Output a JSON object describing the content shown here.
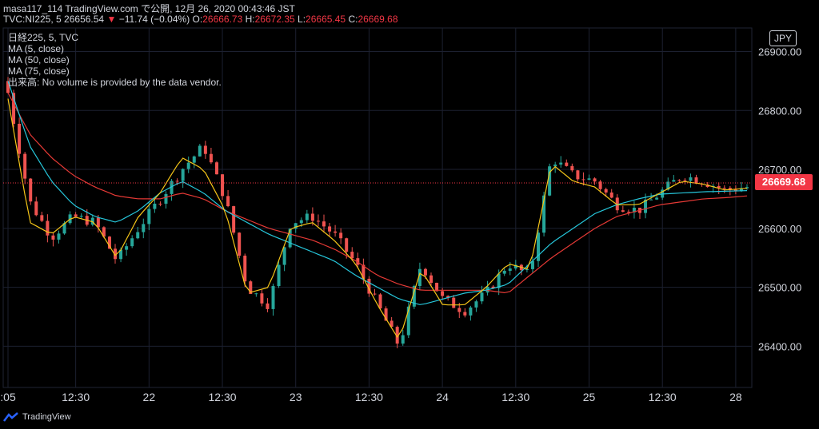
{
  "header": {
    "line1": "masa117_114 TradingView.com で公開, 12月 26, 2020 00:43:46 JST",
    "symbol": "TVC:NI225, 5",
    "last": "26656.54",
    "arrow": "▼",
    "change": "−11.74 (−0.04%)",
    "o_label": "O:",
    "o_value": "26666.73",
    "h_label": "H:",
    "h_value": "26672.35",
    "l_label": "L:",
    "l_value": "26665.45",
    "c_label": "C:",
    "c_value": "26669.68"
  },
  "legend": {
    "title": "日経225, 5, TVC",
    "ma5": "MA (5, close)",
    "ma50": "MA (50, close)",
    "ma75": "MA (75, close)",
    "volume": "出来高: No volume is provided by the data vendor."
  },
  "currency_button": "JPY",
  "current_price_badge": "26669.68",
  "footer_logo": "TradingView",
  "colors": {
    "up": "#26a69a",
    "down": "#ef5350",
    "ma5": "#f5c518",
    "ma50": "#26c6da",
    "ma75": "#e53935",
    "grid": "#1c2030",
    "background": "#000000"
  },
  "chart_data": {
    "type": "candlestick",
    "y_ticks": [
      "26900.00",
      "26800.00",
      "26700.00",
      "26600.00",
      "26500.00",
      "26400.00"
    ],
    "y_tick_values": [
      26900,
      26800,
      26700,
      26600,
      26500,
      26400
    ],
    "ylim": [
      26330,
      26940
    ],
    "x_ticks": [
      ":05",
      "12:30",
      "22",
      "12:30",
      "23",
      "12:30",
      "24",
      "12:30",
      "25",
      "12:30",
      "28"
    ],
    "x_tick_index": [
      0,
      12,
      25,
      38,
      51,
      64,
      77,
      90,
      103,
      116,
      129
    ],
    "session_close": [
      26830,
      26645,
      26585,
      26620,
      26610,
      26545,
      26600,
      26650,
      26700,
      26740,
      26650,
      26500,
      26470,
      26610,
      26620,
      26590,
      26540,
      26470,
      26400,
      26540,
      26480,
      26460,
      26490,
      26540,
      26520,
      26720,
      26690,
      26680,
      26640,
      26630,
      26660,
      26690,
      26680,
      26665,
      26670
    ],
    "ma5": [
      26820,
      26610,
      26590,
      26620,
      26610,
      26550,
      26620,
      26660,
      26720,
      26700,
      26630,
      26490,
      26500,
      26600,
      26610,
      26580,
      26540,
      26470,
      26410,
      26530,
      26470,
      26470,
      26500,
      26540,
      26530,
      26710,
      26680,
      26670,
      26640,
      26640,
      26660,
      26680,
      26675,
      26665,
      26668
    ],
    "ma50": [
      26850,
      26740,
      26680,
      26640,
      26620,
      26610,
      26630,
      26660,
      26680,
      26660,
      26630,
      26610,
      26590,
      26575,
      26560,
      26545,
      26520,
      26500,
      26480,
      26470,
      26480,
      26490,
      26495,
      26505,
      26540,
      26575,
      26600,
      26625,
      26640,
      26650,
      26658,
      26660,
      26662,
      26663,
      26664
    ],
    "ma75": [
      26830,
      26760,
      26720,
      26690,
      26670,
      26655,
      26650,
      26650,
      26660,
      26650,
      26630,
      26615,
      26600,
      26590,
      26580,
      26565,
      26545,
      26520,
      26505,
      26495,
      26495,
      26495,
      26495,
      26490,
      26520,
      26550,
      26575,
      26600,
      26620,
      26630,
      26640,
      26645,
      26650,
      26652,
      26655
    ],
    "grid": true,
    "legend": "top-left"
  }
}
